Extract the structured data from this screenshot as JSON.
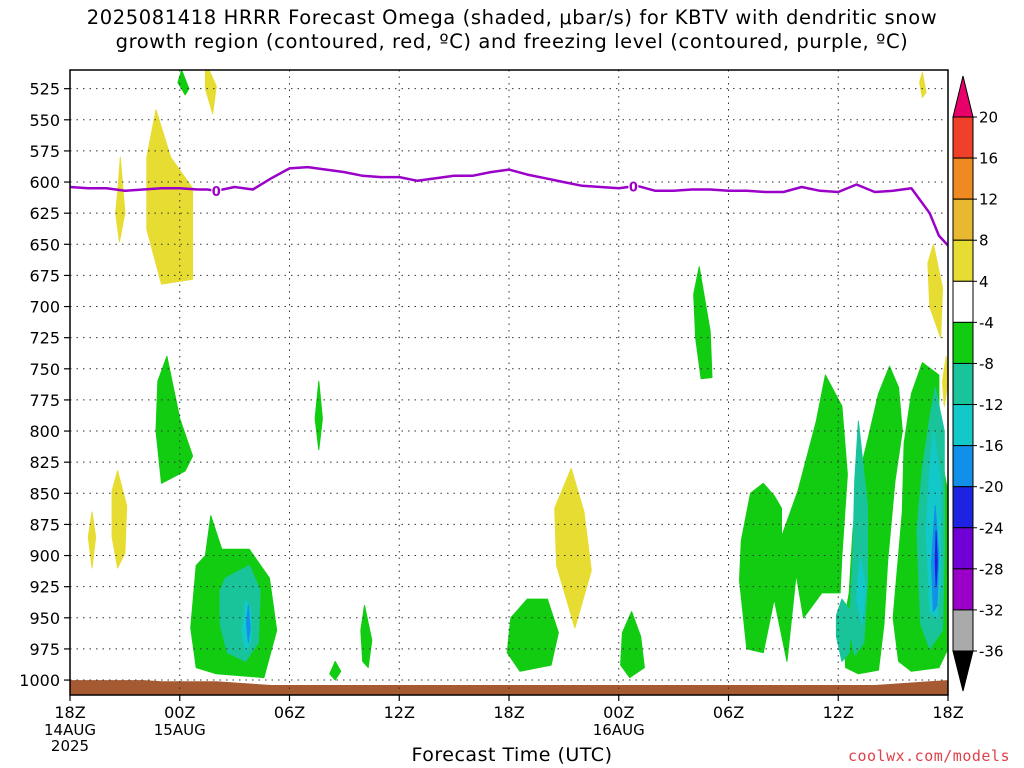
{
  "title_lines": [
    "2025081418 HRRR Forecast Omega (shaded, μbar/s) for KBTV with dendritic snow",
    "growth region (contoured, red, ºC) and freezing level (contoured, purple, ºC)"
  ],
  "credit": "coolwx.com/models",
  "chart_data": {
    "type": "contour",
    "title": "2025081418 HRRR Forecast Omega (shaded, μbar/s) for KBTV with dendritic snow growth region (contoured, red, ºC) and freezing level (contoured, purple, ºC)",
    "xlabel": "Forecast Time (UTC)",
    "ylabel": "",
    "x_unit": "forecast hour from 2025-08-14 18Z",
    "xlim": [
      0,
      48
    ],
    "ylim": [
      1012,
      510
    ],
    "y_scale": "pressure (hPa), inverted",
    "grid": true,
    "x_ticks": [
      {
        "x": 0,
        "label": "18Z",
        "sub": [
          "14AUG",
          "2025"
        ]
      },
      {
        "x": 6,
        "label": "00Z",
        "sub": [
          "15AUG"
        ]
      },
      {
        "x": 12,
        "label": "06Z",
        "sub": []
      },
      {
        "x": 18,
        "label": "12Z",
        "sub": []
      },
      {
        "x": 24,
        "label": "18Z",
        "sub": []
      },
      {
        "x": 30,
        "label": "00Z",
        "sub": [
          "16AUG"
        ]
      },
      {
        "x": 36,
        "label": "06Z",
        "sub": []
      },
      {
        "x": 42,
        "label": "12Z",
        "sub": []
      },
      {
        "x": 48,
        "label": "18Z",
        "sub": []
      }
    ],
    "y_ticks": [
      525,
      550,
      575,
      600,
      625,
      650,
      675,
      700,
      725,
      750,
      775,
      800,
      825,
      850,
      875,
      900,
      925,
      950,
      975,
      1000
    ],
    "colorbar": {
      "levels": [
        "-36",
        "-32",
        "-28",
        "-24",
        "-20",
        "-16",
        "-12",
        "-8",
        "-4",
        "4",
        "8",
        "12",
        "16",
        "20"
      ],
      "colors": [
        "#000000",
        "#aaaaaa",
        "#9b00c9",
        "#7100d6",
        "#1d23e0",
        "#128fe8",
        "#12c8c8",
        "#19c49a",
        "#12cc12",
        "#ffffff",
        "#e6dc32",
        "#e8b830",
        "#ef8a22",
        "#f0402a",
        "#e8006a"
      ]
    },
    "freezing_level": {
      "label": "0",
      "color": "#9b00c9",
      "x": [
        0,
        1,
        2,
        3,
        4,
        5,
        6,
        7,
        7.5,
        8,
        9,
        10,
        11,
        12,
        13,
        14,
        15,
        16,
        17,
        18,
        19,
        20,
        21,
        22,
        23,
        24,
        25,
        26,
        27,
        28,
        29,
        30,
        31,
        32,
        33,
        34,
        35,
        36,
        37,
        38,
        39,
        40,
        41,
        42,
        43,
        44,
        45,
        46,
        46.5,
        47,
        47.5,
        48
      ],
      "y": [
        604,
        605,
        605,
        607,
        606,
        605,
        605,
        606,
        606,
        607,
        604,
        606,
        597,
        589,
        588,
        590,
        592,
        595,
        596,
        596,
        599,
        597,
        595,
        595,
        592,
        590,
        594,
        597,
        600,
        603,
        604,
        605,
        603,
        607,
        607,
        606,
        606,
        607,
        607,
        608,
        608,
        604,
        607,
        608,
        602,
        608,
        607,
        605,
        615,
        625,
        643,
        651
      ]
    },
    "omega_regions": [
      {
        "value": "4 to 8",
        "color": "#e6dc32",
        "points": [
          [
            2.75,
            580
          ],
          [
            3.0,
            625
          ],
          [
            2.7,
            648
          ],
          [
            2.5,
            625
          ],
          [
            2.65,
            600
          ]
        ]
      },
      {
        "value": "4 to 8",
        "color": "#e6dc32",
        "points": [
          [
            4.7,
            542
          ],
          [
            5.5,
            580
          ],
          [
            6.7,
            605
          ],
          [
            6.7,
            678
          ],
          [
            5.0,
            682
          ],
          [
            4.2,
            638
          ],
          [
            4.2,
            580
          ]
        ]
      },
      {
        "value": "4 to 8",
        "color": "#e6dc32",
        "points": [
          [
            7.6,
            510
          ],
          [
            8.0,
            523
          ],
          [
            7.8,
            545
          ],
          [
            7.4,
            525
          ],
          [
            7.4,
            510
          ]
        ]
      },
      {
        "value": "4 to 8",
        "color": "#e6dc32",
        "points": [
          [
            2.6,
            832
          ],
          [
            3.1,
            860
          ],
          [
            3.0,
            898
          ],
          [
            2.6,
            910
          ],
          [
            2.3,
            885
          ],
          [
            2.3,
            848
          ]
        ]
      },
      {
        "value": "4 to 8",
        "color": "#e6dc32",
        "points": [
          [
            1.2,
            865
          ],
          [
            1.4,
            885
          ],
          [
            1.2,
            910
          ],
          [
            1.0,
            885
          ]
        ]
      },
      {
        "value": "4 to 8",
        "color": "#e6dc32",
        "points": [
          [
            27.4,
            830
          ],
          [
            28.1,
            865
          ],
          [
            28.5,
            912
          ],
          [
            27.6,
            958
          ],
          [
            26.6,
            908
          ],
          [
            26.5,
            862
          ]
        ]
      },
      {
        "value": "4 to 8",
        "color": "#e6dc32",
        "points": [
          [
            47.2,
            650
          ],
          [
            47.7,
            685
          ],
          [
            47.6,
            725
          ],
          [
            47.0,
            700
          ],
          [
            46.9,
            665
          ]
        ]
      },
      {
        "value": "4 to 8",
        "color": "#e6dc32",
        "points": [
          [
            47.9,
            740
          ],
          [
            48.0,
            760
          ],
          [
            47.8,
            780
          ],
          [
            47.7,
            760
          ]
        ]
      },
      {
        "value": "4 to 8",
        "color": "#e6dc32",
        "points": [
          [
            46.6,
            512
          ],
          [
            46.8,
            528
          ],
          [
            46.6,
            532
          ],
          [
            46.45,
            520
          ]
        ]
      },
      {
        "value": "-8 to -4",
        "color": "#12cc12",
        "points": [
          [
            6.1,
            510
          ],
          [
            6.5,
            525
          ],
          [
            6.3,
            530
          ],
          [
            5.9,
            520
          ]
        ]
      },
      {
        "value": "-8 to -4",
        "color": "#12cc12",
        "points": [
          [
            5.3,
            740
          ],
          [
            6.0,
            790
          ],
          [
            6.7,
            820
          ],
          [
            6.3,
            832
          ],
          [
            5.0,
            842
          ],
          [
            4.7,
            800
          ],
          [
            4.8,
            760
          ]
        ]
      },
      {
        "value": "-8 to -4",
        "color": "#12cc12",
        "points": [
          [
            13.6,
            760
          ],
          [
            13.8,
            790
          ],
          [
            13.6,
            815
          ],
          [
            13.4,
            790
          ]
        ]
      },
      {
        "value": "-8 to -4",
        "color": "#12cc12",
        "points": [
          [
            7.7,
            868
          ],
          [
            8.3,
            895
          ],
          [
            9.8,
            895
          ],
          [
            10.9,
            918
          ],
          [
            11.3,
            960
          ],
          [
            10.6,
            998
          ],
          [
            8.0,
            995
          ],
          [
            6.9,
            990
          ],
          [
            6.6,
            958
          ],
          [
            6.9,
            908
          ],
          [
            7.4,
            900
          ]
        ]
      },
      {
        "value": "-8 to -4",
        "color": "#12cc12",
        "points": [
          [
            14.5,
            985
          ],
          [
            14.8,
            993
          ],
          [
            14.5,
            1000
          ],
          [
            14.2,
            995
          ]
        ]
      },
      {
        "value": "-8 to -4",
        "color": "#12cc12",
        "points": [
          [
            16.1,
            940
          ],
          [
            16.5,
            968
          ],
          [
            16.3,
            990
          ],
          [
            16.0,
            985
          ],
          [
            15.9,
            960
          ]
        ]
      },
      {
        "value": "-8 to -4",
        "color": "#12cc12",
        "points": [
          [
            26.1,
            935
          ],
          [
            26.7,
            962
          ],
          [
            26.3,
            988
          ],
          [
            24.6,
            993
          ],
          [
            23.9,
            978
          ],
          [
            24.1,
            950
          ],
          [
            25.0,
            935
          ]
        ]
      },
      {
        "value": "-8 to -4",
        "color": "#12cc12",
        "points": [
          [
            30.7,
            945
          ],
          [
            31.2,
            965
          ],
          [
            31.4,
            990
          ],
          [
            30.6,
            998
          ],
          [
            30.1,
            988
          ],
          [
            30.2,
            962
          ]
        ]
      },
      {
        "value": "-8 to -4",
        "color": "#12cc12",
        "points": [
          [
            34.4,
            668
          ],
          [
            35.0,
            720
          ],
          [
            35.1,
            757
          ],
          [
            34.5,
            758
          ],
          [
            34.2,
            725
          ],
          [
            34.1,
            690
          ]
        ]
      },
      {
        "value": "-8 to -4",
        "color": "#12cc12",
        "points": [
          [
            37.9,
            842
          ],
          [
            38.5,
            852
          ],
          [
            38.9,
            862
          ],
          [
            38.9,
            885
          ],
          [
            39.8,
            848
          ],
          [
            40.8,
            792
          ],
          [
            41.3,
            755
          ],
          [
            42.2,
            780
          ],
          [
            42.5,
            835
          ],
          [
            42.2,
            900
          ],
          [
            42.1,
            930
          ],
          [
            41.1,
            930
          ],
          [
            40.1,
            950
          ],
          [
            39.7,
            915
          ],
          [
            39.2,
            985
          ],
          [
            38.5,
            935
          ],
          [
            37.9,
            978
          ],
          [
            37.0,
            975
          ],
          [
            36.6,
            920
          ],
          [
            36.7,
            888
          ],
          [
            37.2,
            850
          ]
        ]
      },
      {
        "value": "-8 to -4",
        "color": "#12cc12",
        "points": [
          [
            44.8,
            748
          ],
          [
            45.3,
            765
          ],
          [
            45.5,
            800
          ],
          [
            45.1,
            840
          ],
          [
            44.7,
            905
          ],
          [
            44.5,
            955
          ],
          [
            44.2,
            992
          ],
          [
            43.1,
            995
          ],
          [
            42.4,
            990
          ],
          [
            42.3,
            955
          ],
          [
            42.6,
            930
          ],
          [
            42.8,
            880
          ],
          [
            43.1,
            838
          ],
          [
            43.6,
            808
          ],
          [
            44.2,
            770
          ]
        ]
      },
      {
        "value": "-8 to -4",
        "color": "#12cc12",
        "points": [
          [
            46.6,
            745
          ],
          [
            47.5,
            755
          ],
          [
            47.5,
            810
          ],
          [
            48.0,
            850
          ],
          [
            48.0,
            975
          ],
          [
            47.5,
            990
          ],
          [
            46.0,
            993
          ],
          [
            45.3,
            985
          ],
          [
            45.0,
            950
          ],
          [
            45.5,
            865
          ],
          [
            45.6,
            810
          ],
          [
            46.0,
            770
          ]
        ]
      },
      {
        "value": "-12 to -8",
        "color": "#19c49a",
        "points": [
          [
            8.5,
            918
          ],
          [
            9.8,
            908
          ],
          [
            10.4,
            928
          ],
          [
            10.3,
            970
          ],
          [
            9.6,
            985
          ],
          [
            8.6,
            978
          ],
          [
            8.2,
            955
          ],
          [
            8.2,
            928
          ]
        ]
      },
      {
        "value": "-12 to -8",
        "color": "#19c49a",
        "points": [
          [
            42.2,
            935
          ],
          [
            42.7,
            945
          ],
          [
            42.6,
            978
          ],
          [
            42.2,
            985
          ],
          [
            41.9,
            965
          ],
          [
            41.9,
            948
          ]
        ]
      },
      {
        "value": "-12 to -8",
        "color": "#19c49a",
        "points": [
          [
            43.1,
            792
          ],
          [
            43.6,
            860
          ],
          [
            43.6,
            920
          ],
          [
            43.4,
            970
          ],
          [
            42.9,
            980
          ],
          [
            42.6,
            960
          ],
          [
            42.8,
            900
          ],
          [
            42.9,
            840
          ]
        ]
      },
      {
        "value": "-12 to -8",
        "color": "#19c49a",
        "points": [
          [
            47.3,
            765
          ],
          [
            47.8,
            800
          ],
          [
            47.8,
            900
          ],
          [
            47.7,
            960
          ],
          [
            47.0,
            975
          ],
          [
            46.5,
            955
          ],
          [
            46.3,
            880
          ],
          [
            46.6,
            830
          ],
          [
            47.0,
            790
          ]
        ]
      },
      {
        "value": "-16 to -12",
        "color": "#12c8c8",
        "points": [
          [
            9.6,
            935
          ],
          [
            9.9,
            945
          ],
          [
            9.9,
            968
          ],
          [
            9.6,
            978
          ],
          [
            9.4,
            960
          ]
        ]
      },
      {
        "value": "-16 to -12",
        "color": "#12c8c8",
        "points": [
          [
            43.2,
            900
          ],
          [
            43.5,
            925
          ],
          [
            43.3,
            955
          ],
          [
            43.0,
            935
          ]
        ]
      },
      {
        "value": "-16 to -12",
        "color": "#12c8c8",
        "points": [
          [
            47.2,
            800
          ],
          [
            47.6,
            840
          ],
          [
            47.6,
            920
          ],
          [
            47.4,
            950
          ],
          [
            47.0,
            945
          ],
          [
            46.8,
            880
          ],
          [
            47.0,
            830
          ]
        ]
      },
      {
        "value": "-20 to -16",
        "color": "#128fe8",
        "points": [
          [
            9.75,
            940
          ],
          [
            9.85,
            958
          ],
          [
            9.75,
            970
          ],
          [
            9.65,
            955
          ]
        ]
      },
      {
        "value": "-20 to -16",
        "color": "#128fe8",
        "points": [
          [
            47.3,
            860
          ],
          [
            47.5,
            900
          ],
          [
            47.4,
            940
          ],
          [
            47.2,
            945
          ],
          [
            47.1,
            905
          ]
        ]
      },
      {
        "value": "-24 to -20",
        "color": "#1d23e0",
        "points": [
          [
            47.35,
            880
          ],
          [
            47.42,
            905
          ],
          [
            47.35,
            925
          ],
          [
            47.3,
            905
          ]
        ]
      }
    ],
    "terrain_color": "#a55a32",
    "terrain": {
      "x": [
        0,
        4,
        5,
        6,
        7,
        8,
        9,
        10,
        11,
        12,
        15,
        20,
        24,
        30,
        36,
        40,
        44,
        45,
        46,
        47,
        48
      ],
      "y": [
        1000,
        1000,
        1001,
        1001,
        1001,
        1001,
        1002,
        1003,
        1004,
        1004,
        1004,
        1004,
        1004,
        1004,
        1004,
        1004,
        1004,
        1003,
        1002,
        1001,
        1000
      ]
    }
  }
}
